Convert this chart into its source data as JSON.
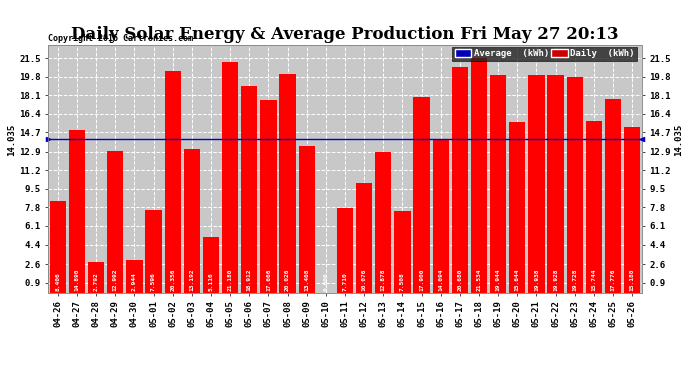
{
  "title": "Daily Solar Energy & Average Production Fri May 27 20:13",
  "copyright": "Copyright 2016 Cartronics.com",
  "average_label": "Average  (kWh)",
  "daily_label": "Daily  (kWh)",
  "average_value": 14.035,
  "categories": [
    "04-26",
    "04-27",
    "04-28",
    "04-29",
    "04-30",
    "05-01",
    "05-02",
    "05-03",
    "05-04",
    "05-05",
    "05-06",
    "05-07",
    "05-08",
    "05-09",
    "05-10",
    "05-11",
    "05-12",
    "05-13",
    "05-14",
    "05-15",
    "05-16",
    "05-17",
    "05-18",
    "05-19",
    "05-20",
    "05-21",
    "05-22",
    "05-23",
    "05-24",
    "05-25",
    "05-26"
  ],
  "values": [
    8.406,
    14.89,
    2.792,
    12.992,
    2.944,
    7.596,
    20.356,
    13.192,
    5.116,
    21.18,
    18.912,
    17.666,
    20.026,
    13.408,
    0.0,
    7.71,
    10.076,
    12.878,
    7.508,
    17.9,
    14.094,
    20.68,
    21.534,
    19.944,
    15.644,
    19.938,
    19.928,
    19.728,
    15.744,
    17.776,
    15.18
  ],
  "bar_color": "#FF0000",
  "average_line_color": "#0000CC",
  "ylim": [
    0,
    22.7
  ],
  "yticks": [
    0.9,
    2.6,
    4.4,
    6.1,
    7.8,
    9.5,
    11.2,
    12.9,
    14.7,
    16.4,
    18.1,
    19.8,
    21.5
  ],
  "background_color": "#FFFFFF",
  "plot_background_color": "#C8C8C8",
  "grid_color": "#FFFFFF",
  "title_fontsize": 12,
  "copyright_fontsize": 6,
  "bar_label_fontsize": 4.5,
  "tick_label_fontsize": 6.5,
  "avg_label_fontsize": 6.5,
  "legend_avg_bg": "#0000BB",
  "legend_daily_bg": "#CC0000",
  "legend_fontsize": 6.5
}
